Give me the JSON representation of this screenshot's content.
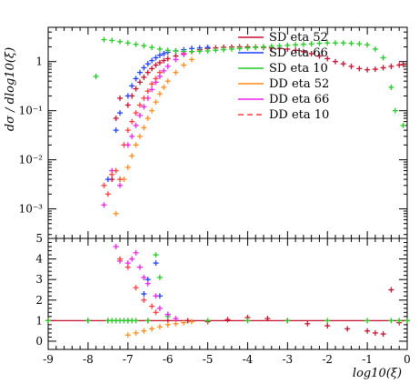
{
  "chart_data": [
    {
      "type": "scatter",
      "panel": "top",
      "ylabel": "dσ / dlog10(ξ)",
      "yscale": "log",
      "ylim": [
        0.00025,
        5
      ],
      "xlim": [
        -9,
        0
      ],
      "ytick_labels": [
        "10⁻³",
        "10⁻²",
        "10⁻¹",
        "1"
      ],
      "ytick_values": [
        0.001,
        0.01,
        0.1,
        1
      ],
      "legend": [
        {
          "label": "SD eta 52",
          "color": "#c8102e",
          "style": "solid"
        },
        {
          "label": "SD eta 66",
          "color": "#1f3fff",
          "style": "solid"
        },
        {
          "label": "SD eta 10",
          "color": "#22cc22",
          "style": "solid"
        },
        {
          "label": "DD eta 52",
          "color": "#ff8c1a",
          "style": "solid"
        },
        {
          "label": "DD eta 66",
          "color": "#ee22ee",
          "style": "solid"
        },
        {
          "label": "DD eta 10",
          "color": "#ff3b3b",
          "style": "dashed"
        }
      ],
      "legend_placement": "top-right",
      "series": [
        {
          "name": "SD eta 52",
          "color": "#c8102e",
          "x": [
            -7.4,
            -7.3,
            -7.2,
            -7.0,
            -6.9,
            -6.8,
            -6.7,
            -6.6,
            -6.5,
            -6.4,
            -6.3,
            -6.2,
            -6.1,
            -6.0,
            -5.8,
            -5.6,
            -5.4,
            -5.2,
            -5.0,
            -4.8,
            -4.6,
            -4.4,
            -4.2,
            -4.0,
            -3.8,
            -3.6,
            -3.4,
            -3.2,
            -3.0,
            -2.8,
            -2.6,
            -2.4,
            -2.2,
            -2.0,
            -1.8,
            -1.6,
            -1.4,
            -1.2,
            -1.0,
            -0.8,
            -0.6,
            -0.4,
            -0.2,
            -0.1
          ],
          "y": [
            0.004,
            0.07,
            0.18,
            0.13,
            0.2,
            0.28,
            0.38,
            0.48,
            0.6,
            0.72,
            0.85,
            0.95,
            1.05,
            1.15,
            1.3,
            1.45,
            1.6,
            1.75,
            1.85,
            1.9,
            1.95,
            1.98,
            2.0,
            2.0,
            1.98,
            1.95,
            1.9,
            1.85,
            1.8,
            1.7,
            1.6,
            1.45,
            1.3,
            1.15,
            1.0,
            0.9,
            0.8,
            0.72,
            0.68,
            0.7,
            0.75,
            0.8,
            0.85,
            0.88
          ]
        },
        {
          "name": "SD eta 66",
          "color": "#1f3fff",
          "x": [
            -7.5,
            -7.3,
            -7.2,
            -7.0,
            -6.9,
            -6.8,
            -6.7,
            -6.6,
            -6.5,
            -6.4,
            -6.3,
            -6.2,
            -6.1,
            -6.0,
            -5.8,
            -5.6,
            -5.4,
            -5.2,
            -5.0
          ],
          "y": [
            0.004,
            0.04,
            0.09,
            0.2,
            0.32,
            0.45,
            0.6,
            0.75,
            0.9,
            1.05,
            1.2,
            1.35,
            1.45,
            1.55,
            1.65,
            1.75,
            1.85,
            1.9,
            1.95
          ]
        },
        {
          "name": "SD eta 10",
          "color": "#22cc22",
          "x": [
            -7.8,
            -7.6,
            -7.4,
            -7.2,
            -7.0,
            -6.8,
            -6.6,
            -6.4,
            -6.2,
            -6.0,
            -5.8,
            -5.6,
            -5.4,
            -5.2,
            -5.0,
            -4.8,
            -4.6,
            -4.4,
            -4.2,
            -4.0,
            -3.8,
            -3.6,
            -3.4,
            -3.2,
            -3.0,
            -2.8,
            -2.6,
            -2.4,
            -2.2,
            -2.0,
            -1.8,
            -1.6,
            -1.4,
            -1.2,
            -1.0,
            -0.8,
            -0.6,
            -0.4,
            -0.3,
            -0.1
          ],
          "y": [
            0.5,
            2.8,
            2.7,
            2.55,
            2.4,
            2.25,
            2.1,
            1.95,
            1.8,
            1.7,
            1.65,
            1.6,
            1.6,
            1.62,
            1.65,
            1.7,
            1.75,
            1.8,
            1.85,
            1.9,
            1.95,
            2.0,
            2.05,
            2.1,
            2.15,
            2.2,
            2.25,
            2.3,
            2.35,
            2.4,
            2.4,
            2.4,
            2.35,
            2.3,
            2.2,
            1.8,
            1.2,
            0.3,
            0.1,
            0.05
          ]
        },
        {
          "name": "DD eta 52",
          "color": "#ff8c1a",
          "x": [
            -7.3,
            -7.1,
            -7.0,
            -6.9,
            -6.8,
            -6.7,
            -6.6,
            -6.5,
            -6.4,
            -6.3,
            -6.2,
            -6.1,
            -6.0,
            -5.8,
            -5.6,
            -5.4
          ],
          "y": [
            0.0008,
            0.004,
            0.007,
            0.012,
            0.02,
            0.03,
            0.045,
            0.07,
            0.1,
            0.15,
            0.22,
            0.3,
            0.4,
            0.6,
            0.85,
            1.1
          ]
        },
        {
          "name": "DD eta 66",
          "color": "#ee22ee",
          "x": [
            -7.6,
            -7.4,
            -7.2,
            -7.0,
            -6.9,
            -6.8,
            -6.7,
            -6.6,
            -6.5,
            -6.4,
            -6.3,
            -6.2,
            -6.1,
            -6.0,
            -5.8,
            -5.6
          ],
          "y": [
            0.0012,
            0.006,
            0.003,
            0.02,
            0.03,
            0.05,
            0.08,
            0.12,
            0.18,
            0.27,
            0.38,
            0.5,
            0.65,
            0.8,
            1.1,
            1.4
          ]
        },
        {
          "name": "DD eta 10",
          "color": "#ff3b3b",
          "x": [
            -7.6,
            -7.5,
            -7.4,
            -7.3,
            -7.2,
            -7.1,
            -7.0,
            -6.9,
            -6.8,
            -6.7,
            -6.6,
            -6.5,
            -6.4,
            -6.3,
            -6.2
          ],
          "y": [
            0.003,
            0.002,
            0.005,
            0.006,
            0.004,
            0.02,
            0.04,
            0.06,
            0.09,
            0.13,
            0.18,
            0.25,
            0.35,
            0.45,
            0.6
          ]
        }
      ]
    },
    {
      "type": "scatter",
      "panel": "bottom",
      "ylim": [
        -0.4,
        5
      ],
      "xlim": [
        -9,
        0
      ],
      "ytick_labels": [
        "0",
        "1",
        "2",
        "3",
        "4",
        "5"
      ],
      "ytick_values": [
        0,
        1,
        2,
        3,
        4,
        5
      ],
      "xtick_labels": [
        "-9",
        "-8",
        "-7",
        "-6",
        "-5",
        "-4",
        "-3",
        "-2",
        "-1",
        "0"
      ],
      "xtick_values": [
        -9,
        -8,
        -7,
        -6,
        -5,
        -4,
        -3,
        -2,
        -1,
        0
      ],
      "xlabel": "log10(ξ)",
      "series": [
        {
          "name": "SD eta 52",
          "color": "#c8102e",
          "x": [
            -9.0,
            -8.0,
            -7.5,
            -7.0,
            -6.5,
            -6.0,
            -5.5,
            -5.0,
            -4.5,
            -4.0,
            -3.5,
            -3.0,
            -2.5,
            -2.0,
            -1.5,
            -1.0,
            -0.8,
            -0.6,
            -0.4,
            -0.2,
            0.0
          ],
          "y": [
            1.0,
            1.0,
            1.0,
            1.0,
            1.0,
            1.0,
            1.0,
            0.95,
            1.05,
            1.15,
            1.1,
            1.0,
            0.85,
            0.75,
            0.6,
            0.5,
            0.4,
            0.35,
            2.5,
            0.9,
            1.0
          ]
        },
        {
          "name": "SD eta 66",
          "color": "#1f3fff",
          "x": [
            -6.6,
            -6.5,
            -6.3,
            -6.2,
            -6.0
          ],
          "y": [
            2.3,
            3.0,
            3.8,
            2.2,
            1.3
          ]
        },
        {
          "name": "SD eta 10",
          "color": "#22cc22",
          "x": [
            -9.0,
            -8.0,
            -7.5,
            -7.4,
            -7.3,
            -7.2,
            -7.1,
            -7.0,
            -6.9,
            -6.8,
            -6.5,
            -6.3,
            -6.2,
            -6.0,
            -5.0,
            -4.0,
            -3.0,
            -2.0,
            -1.0,
            -0.4,
            -0.2,
            0.0
          ],
          "y": [
            1.0,
            1.0,
            1.0,
            1.0,
            1.0,
            1.0,
            1.0,
            1.0,
            1.0,
            1.0,
            1.0,
            4.2,
            3.1,
            1.2,
            1.0,
            1.0,
            1.0,
            1.0,
            1.0,
            1.0,
            1.0,
            1.0
          ]
        },
        {
          "name": "DD eta 52",
          "color": "#ff8c1a",
          "x": [
            -7.0,
            -6.8,
            -6.6,
            -6.4,
            -6.2,
            -6.0,
            -5.8,
            -5.6,
            -5.4
          ],
          "y": [
            0.3,
            0.4,
            0.5,
            0.6,
            0.7,
            0.8,
            0.85,
            0.9,
            0.95
          ]
        },
        {
          "name": "DD eta 66",
          "color": "#ee22ee",
          "x": [
            -7.3,
            -7.2,
            -7.0,
            -6.9,
            -6.8,
            -6.7,
            -6.6,
            -6.5,
            -6.3,
            -6.2,
            -6.0,
            -5.8
          ],
          "y": [
            4.6,
            3.9,
            3.8,
            4.0,
            4.3,
            3.6,
            3.1,
            2.8,
            2.2,
            1.6,
            1.3,
            1.1
          ]
        },
        {
          "name": "DD eta 10",
          "color": "#ff3b3b",
          "x": [
            -7.2,
            -7.0,
            -6.8,
            -6.6,
            -6.4,
            -6.3
          ],
          "y": [
            4.0,
            3.6,
            2.6,
            2.0,
            1.7,
            1.4
          ]
        }
      ]
    }
  ]
}
